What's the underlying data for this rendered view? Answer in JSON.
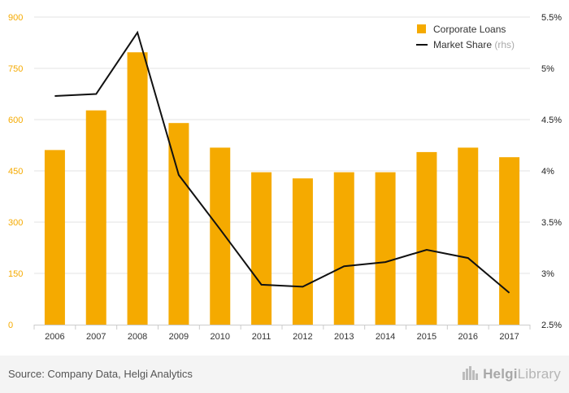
{
  "chart_data": {
    "type": "bar+line",
    "categories": [
      "2006",
      "2007",
      "2008",
      "2009",
      "2010",
      "2011",
      "2012",
      "2013",
      "2014",
      "2015",
      "2016",
      "2017"
    ],
    "series": [
      {
        "name": "Corporate Loans",
        "type": "bar",
        "axis": "left",
        "color": "#f5aa00",
        "values": [
          511,
          627,
          797,
          590,
          518,
          446,
          428,
          446,
          446,
          505,
          518,
          490
        ]
      },
      {
        "name": "Market Share",
        "legend_suffix": "(rhs)",
        "type": "line",
        "axis": "right",
        "color": "#111111",
        "values": [
          4.73,
          4.75,
          5.35,
          3.96,
          3.43,
          2.89,
          2.87,
          3.07,
          3.11,
          3.23,
          3.15,
          2.81
        ]
      }
    ],
    "y_left": {
      "min": 0,
      "max": 900,
      "ticks": [
        0,
        150,
        300,
        450,
        600,
        750,
        900
      ],
      "tick_labels": [
        "0",
        "150",
        "300",
        "450",
        "600",
        "750",
        "900"
      ],
      "color": "#f5aa00"
    },
    "y_right": {
      "min": 2.5,
      "max": 5.5,
      "ticks": [
        2.5,
        3,
        3.5,
        4,
        4.5,
        5,
        5.5
      ],
      "tick_labels": [
        "2.5%",
        "3%",
        "3.5%",
        "4%",
        "4.5%",
        "5%",
        "5.5%"
      ]
    },
    "legend_position": "top-right",
    "grid": true
  },
  "footer": {
    "source": "Source: Company Data, Helgi Analytics",
    "brand_a": "Helgi",
    "brand_b": "Library",
    "brand_icon": "city-skyline-icon"
  }
}
